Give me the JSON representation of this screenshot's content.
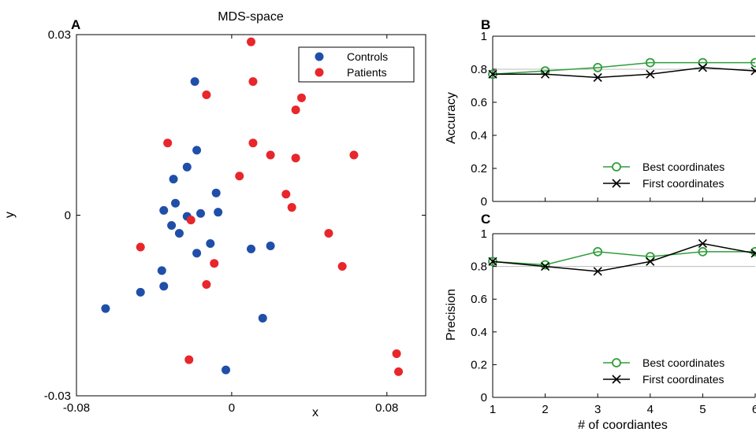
{
  "colors": {
    "controls": "#1f4fa8",
    "patients": "#e8262b",
    "best": "#2e9e3a",
    "first": "#000000",
    "reference": "#bbbbbb"
  },
  "panel_a": {
    "letter": "A"
  },
  "panel_b": {
    "letter": "B"
  },
  "panel_c": {
    "letter": "C"
  },
  "chart_data": [
    {
      "type": "scatter",
      "title": "MDS-space",
      "xlabel": "x",
      "ylabel": "y",
      "xlim": [
        -0.08,
        0.1
      ],
      "ylim": [
        -0.03,
        0.03
      ],
      "xticks": [
        -0.08,
        0,
        0.08
      ],
      "xtick_labels": [
        "-0.08",
        "0",
        "0.08"
      ],
      "yticks": [
        -0.03,
        0,
        0.03
      ],
      "ytick_labels": [
        "-0.03",
        "0",
        "0.03"
      ],
      "legend_position": "top-right",
      "series": [
        {
          "name": "Controls",
          "color_key": "controls",
          "points": [
            [
              -0.065,
              -0.0155
            ],
            [
              -0.047,
              -0.0128
            ],
            [
              -0.035,
              -0.0118
            ],
            [
              -0.036,
              -0.0092
            ],
            [
              -0.035,
              0.0008
            ],
            [
              -0.031,
              -0.0017
            ],
            [
              -0.027,
              -0.003
            ],
            [
              -0.029,
              0.002
            ],
            [
              -0.03,
              0.006
            ],
            [
              -0.023,
              0.008
            ],
            [
              -0.018,
              0.0108
            ],
            [
              -0.019,
              0.0222
            ],
            [
              -0.023,
              -0.0002
            ],
            [
              -0.016,
              0.0003
            ],
            [
              -0.018,
              -0.0063
            ],
            [
              -0.011,
              -0.0047
            ],
            [
              -0.008,
              0.0037
            ],
            [
              -0.007,
              0.0005
            ],
            [
              -0.003,
              -0.0257
            ],
            [
              0.01,
              -0.0056
            ],
            [
              0.02,
              -0.0051
            ],
            [
              0.016,
              -0.0171
            ]
          ]
        },
        {
          "name": "Patients",
          "color_key": "patients",
          "points": [
            [
              0.01,
              0.0288
            ],
            [
              0.011,
              0.0222
            ],
            [
              0.011,
              0.012
            ],
            [
              -0.013,
              0.02
            ],
            [
              -0.033,
              0.012
            ],
            [
              0.004,
              0.0065
            ],
            [
              0.02,
              0.01
            ],
            [
              0.033,
              0.0175
            ],
            [
              0.036,
              0.0195
            ],
            [
              0.033,
              0.0095
            ],
            [
              0.028,
              0.0035
            ],
            [
              0.031,
              0.0013
            ],
            [
              0.063,
              0.01
            ],
            [
              0.05,
              -0.003
            ],
            [
              0.057,
              -0.0085
            ],
            [
              0.085,
              -0.023
            ],
            [
              0.086,
              -0.026
            ],
            [
              -0.047,
              -0.0053
            ],
            [
              -0.021,
              -0.0008
            ],
            [
              -0.009,
              -0.008
            ],
            [
              -0.013,
              -0.0115
            ],
            [
              -0.022,
              -0.024
            ]
          ]
        }
      ]
    },
    {
      "type": "line",
      "xlabel": "",
      "ylabel": "Accuracy",
      "xlim": [
        1,
        6
      ],
      "ylim": [
        0,
        1
      ],
      "yticks": [
        0,
        0.2,
        0.4,
        0.6,
        0.8,
        1
      ],
      "ytick_labels": [
        "0",
        "0.2",
        "0.4",
        "0.6",
        "0.8",
        "1"
      ],
      "reference_line": 0.8,
      "legend_position": "bottom-right",
      "x": [
        1,
        2,
        3,
        4,
        5,
        6
      ],
      "series": [
        {
          "name": "Best coordinates",
          "color_key": "best",
          "marker": "circle",
          "values": [
            0.77,
            0.79,
            0.81,
            0.84,
            0.84,
            0.84
          ]
        },
        {
          "name": "First coordinates",
          "color_key": "first",
          "marker": "x",
          "values": [
            0.77,
            0.77,
            0.75,
            0.77,
            0.81,
            0.79
          ]
        }
      ]
    },
    {
      "type": "line",
      "xlabel": "# of coordiantes",
      "ylabel": "Precision",
      "xlim": [
        1,
        6
      ],
      "ylim": [
        0,
        1
      ],
      "xticks": [
        1,
        2,
        3,
        4,
        5,
        6
      ],
      "xtick_labels": [
        "1",
        "2",
        "3",
        "4",
        "5",
        "6"
      ],
      "yticks": [
        0,
        0.2,
        0.4,
        0.6,
        0.8,
        1
      ],
      "ytick_labels": [
        "0",
        "0.2",
        "0.4",
        "0.6",
        "0.8",
        "1"
      ],
      "reference_line": 0.8,
      "legend_position": "bottom-right",
      "x": [
        1,
        2,
        3,
        4,
        5,
        6
      ],
      "series": [
        {
          "name": "Best coordinates",
          "color_key": "best",
          "marker": "circle",
          "values": [
            0.83,
            0.81,
            0.89,
            0.86,
            0.89,
            0.89
          ]
        },
        {
          "name": "First coordinates",
          "color_key": "first",
          "marker": "x",
          "values": [
            0.83,
            0.8,
            0.77,
            0.83,
            0.94,
            0.88
          ]
        }
      ]
    }
  ]
}
